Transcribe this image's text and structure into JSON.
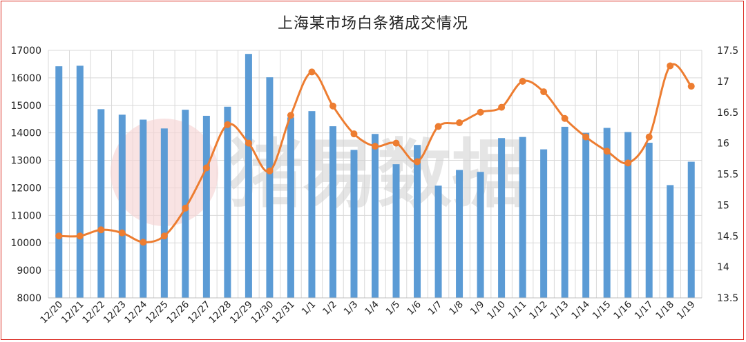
{
  "chart_data": {
    "type": "bar+line",
    "title": "上海某市场白条猪成交情况",
    "watermark": "猪易数据",
    "categories": [
      "12/20",
      "12/21",
      "12/22",
      "12/23",
      "12/24",
      "12/25",
      "12/26",
      "12/27",
      "12/28",
      "12/29",
      "12/30",
      "12/31",
      "1/1",
      "1/2",
      "1/3",
      "1/4",
      "1/5",
      "1/6",
      "1/7",
      "1/8",
      "1/9",
      "1/10",
      "1/11",
      "1/12",
      "1/13",
      "1/14",
      "1/15",
      "1/16",
      "1/17",
      "1/18",
      "1/19"
    ],
    "series": [
      {
        "type": "bar",
        "axis": "left",
        "color": "#5b9bd5",
        "values": [
          16420,
          16440,
          14860,
          14660,
          14480,
          14160,
          14840,
          14620,
          14950,
          16870,
          16020,
          14560,
          14790,
          14240,
          13380,
          13960,
          12860,
          13560,
          12080,
          12650,
          12580,
          13810,
          13850,
          13400,
          14220,
          14000,
          14180,
          14030,
          13640,
          12100,
          12950
        ]
      },
      {
        "type": "line",
        "axis": "right",
        "color": "#ed7d31",
        "values": [
          14.5,
          14.5,
          14.6,
          14.55,
          14.4,
          14.5,
          14.95,
          15.6,
          16.3,
          16.0,
          15.55,
          16.45,
          17.15,
          16.6,
          16.15,
          15.95,
          16.0,
          15.7,
          16.27,
          16.33,
          16.5,
          16.58,
          17.0,
          16.83,
          16.4,
          16.1,
          15.87,
          15.68,
          16.1,
          17.25,
          16.92
        ]
      }
    ],
    "ylim_left": [
      8000,
      17000
    ],
    "ylim_right": [
      13.5,
      17.5
    ],
    "yticks_left": [
      "8000",
      "9000",
      "10000",
      "11000",
      "12000",
      "13000",
      "14000",
      "15000",
      "16000",
      "17000"
    ],
    "yticks_right": [
      "13.5",
      "14",
      "14.5",
      "15",
      "15.5",
      "16",
      "16.5",
      "17",
      "17.5"
    ],
    "grid": true
  }
}
